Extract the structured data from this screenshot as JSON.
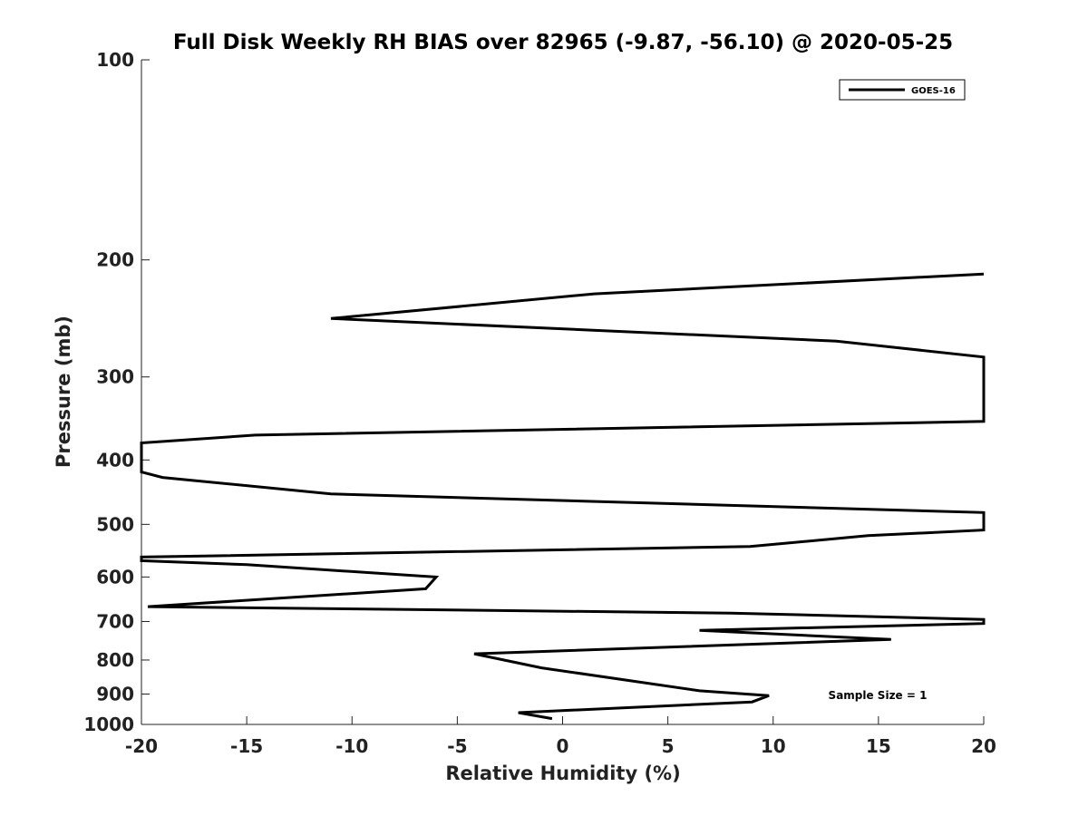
{
  "chart_data": {
    "type": "line",
    "title": "Full Disk Weekly RH BIAS over 82965 (-9.87, -56.10) @ 2020-05-25",
    "xlabel": "Relative Humidity (%)",
    "ylabel": "Pressure (mb)",
    "xlim": [
      -20,
      20
    ],
    "ylim": [
      1000,
      100
    ],
    "y_scale": "log",
    "y_reversed": true,
    "x_ticks": [
      -20,
      -15,
      -10,
      -5,
      0,
      5,
      10,
      15,
      20
    ],
    "y_ticks": [
      100,
      200,
      300,
      400,
      500,
      600,
      700,
      800,
      900,
      1000
    ],
    "grid": false,
    "legend_position": "top-right",
    "annotation": "Sample Size = 1",
    "series": [
      {
        "name": "GOES-16",
        "color": "#000000",
        "points": [
          {
            "x": 20.0,
            "y": 210
          },
          {
            "x": 1.5,
            "y": 225
          },
          {
            "x": -11.0,
            "y": 245
          },
          {
            "x": 13.0,
            "y": 265
          },
          {
            "x": 20.0,
            "y": 280
          },
          {
            "x": 20.0,
            "y": 350
          },
          {
            "x": -14.6,
            "y": 367
          },
          {
            "x": -20.0,
            "y": 377
          },
          {
            "x": -20.0,
            "y": 417
          },
          {
            "x": -19.0,
            "y": 425
          },
          {
            "x": -11.0,
            "y": 450
          },
          {
            "x": 20.0,
            "y": 480
          },
          {
            "x": 20.0,
            "y": 510
          },
          {
            "x": 14.5,
            "y": 520
          },
          {
            "x": 8.9,
            "y": 540
          },
          {
            "x": -20.0,
            "y": 560
          },
          {
            "x": -20.0,
            "y": 567
          },
          {
            "x": -15.0,
            "y": 575
          },
          {
            "x": -6.0,
            "y": 600
          },
          {
            "x": -6.5,
            "y": 625
          },
          {
            "x": -19.7,
            "y": 665
          },
          {
            "x": 8.0,
            "y": 680
          },
          {
            "x": 20.0,
            "y": 695
          },
          {
            "x": 20.0,
            "y": 705
          },
          {
            "x": 6.5,
            "y": 722
          },
          {
            "x": 15.6,
            "y": 745
          },
          {
            "x": -4.2,
            "y": 783
          },
          {
            "x": -1.0,
            "y": 822
          },
          {
            "x": 6.5,
            "y": 890
          },
          {
            "x": 9.8,
            "y": 905
          },
          {
            "x": 9.0,
            "y": 925
          },
          {
            "x": -2.1,
            "y": 960
          },
          {
            "x": -0.5,
            "y": 980
          }
        ]
      }
    ]
  }
}
